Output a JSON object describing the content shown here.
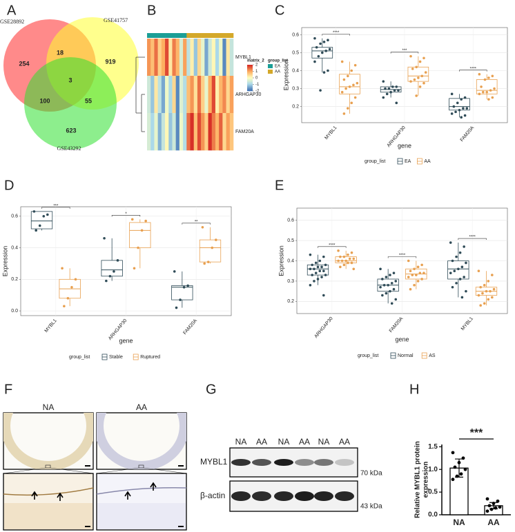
{
  "panel_labels": [
    "A",
    "B",
    "C",
    "D",
    "E",
    "F",
    "G",
    "H"
  ],
  "chart_data": [
    {
      "type": "venn",
      "sets": [
        {
          "name": "GSE28892",
          "color": "#ff2a2a"
        },
        {
          "name": "GSE41757",
          "color": "#ffff30"
        },
        {
          "name": "GSE43292",
          "color": "#30e030"
        }
      ],
      "values": [
        254,
        18,
        919,
        3,
        100,
        55,
        623
      ]
    },
    {
      "type": "heatmap",
      "rows": [
        "MYBL1",
        "ARHGAP30",
        "FAM20A"
      ],
      "column_groups": [
        "EA",
        "EA",
        "EA",
        "EA",
        "EA",
        "EA",
        "EA",
        "EA",
        "EA",
        "EA",
        "EA",
        "AA",
        "AA",
        "AA",
        "AA",
        "AA",
        "AA",
        "AA",
        "AA",
        "AA",
        "AA",
        "AA",
        "AA",
        "AA"
      ],
      "values": [
        [
          1.2,
          0.8,
          1.5,
          0.6,
          1.0,
          1.8,
          0.3,
          1.4,
          0.9,
          -0.5,
          1.1,
          -0.8,
          0.2,
          -1.2,
          0.5,
          -0.3,
          -1.5,
          -0.6,
          0.1,
          -1.0,
          -0.2,
          -1.8,
          0.3,
          -0.7
        ],
        [
          -0.6,
          -1.2,
          0.3,
          -0.8,
          -1.5,
          -0.2,
          -1.0,
          0.5,
          -1.8,
          -0.4,
          -0.9,
          0.8,
          1.2,
          0.4,
          1.5,
          0.6,
          -0.3,
          1.0,
          1.8,
          0.2,
          0.9,
          1.3,
          0.5,
          1.1
        ],
        [
          -0.5,
          -1.0,
          -0.3,
          -1.4,
          -0.7,
          0.1,
          -1.2,
          -0.6,
          -1.8,
          -0.2,
          -0.9,
          1.5,
          2.0,
          0.8,
          1.8,
          1.2,
          0.6,
          2.0,
          1.4,
          0.9,
          1.6,
          0.5,
          1.1,
          0.7
        ]
      ],
      "legend_title": "matrix_2",
      "colorbar_ticks": [
        2,
        1,
        0,
        -1,
        -2
      ],
      "colorscale": [
        "#4575b4",
        "#abd9e9",
        "#ffffbf",
        "#fdae61",
        "#d73027"
      ],
      "group_title": "group_list",
      "group_names": [
        "EA",
        "AA"
      ],
      "group_colors": [
        "#1b9e96",
        "#d4a82a"
      ]
    },
    {
      "type": "box",
      "ylabel": "Expression",
      "xlabel": "gene",
      "legend_title": "group_list",
      "categories": [
        "MYBL1",
        "ARHGAP30",
        "FAM20A"
      ],
      "ylim": [
        0.11,
        0.64
      ],
      "yticks": [
        0.2,
        0.3,
        0.4,
        0.5,
        0.6
      ],
      "annotations": [
        "****",
        "***",
        "****"
      ],
      "series": [
        {
          "name": "EA",
          "color": "#2f4b57",
          "boxes": [
            {
              "whislo": 0.39,
              "q1": 0.47,
              "median": 0.51,
              "q3": 0.53,
              "whishi": 0.58,
              "points": [
                0.58,
                0.57,
                0.56,
                0.55,
                0.53,
                0.52,
                0.51,
                0.5,
                0.48,
                0.45,
                0.4,
                0.39,
                0.29
              ]
            },
            {
              "whislo": 0.25,
              "q1": 0.28,
              "median": 0.295,
              "q3": 0.31,
              "whishi": 0.34,
              "points": [
                0.34,
                0.31,
                0.31,
                0.3,
                0.3,
                0.29,
                0.29,
                0.28,
                0.27,
                0.25,
                0.22
              ]
            },
            {
              "whislo": 0.14,
              "q1": 0.18,
              "median": 0.2,
              "q3": 0.245,
              "whishi": 0.27,
              "points": [
                0.27,
                0.25,
                0.24,
                0.22,
                0.2,
                0.19,
                0.19,
                0.18,
                0.17,
                0.16,
                0.15,
                0.14
              ]
            }
          ]
        },
        {
          "name": "AA",
          "color": "#e8a050",
          "boxes": [
            {
              "whislo": 0.16,
              "q1": 0.27,
              "median": 0.31,
              "q3": 0.38,
              "whishi": 0.45,
              "points": [
                0.45,
                0.43,
                0.4,
                0.37,
                0.35,
                0.33,
                0.32,
                0.31,
                0.3,
                0.28,
                0.25,
                0.22,
                0.19,
                0.16
              ]
            },
            {
              "whislo": 0.26,
              "q1": 0.34,
              "median": 0.37,
              "q3": 0.42,
              "whishi": 0.48,
              "points": [
                0.48,
                0.47,
                0.45,
                0.42,
                0.41,
                0.39,
                0.37,
                0.36,
                0.35,
                0.34,
                0.33,
                0.31,
                0.26
              ]
            },
            {
              "whislo": 0.24,
              "q1": 0.27,
              "median": 0.29,
              "q3": 0.35,
              "whishi": 0.38,
              "points": [
                0.38,
                0.37,
                0.36,
                0.35,
                0.31,
                0.3,
                0.29,
                0.28,
                0.28,
                0.27,
                0.25,
                0.24
              ]
            }
          ]
        }
      ]
    },
    {
      "type": "box",
      "ylabel": "Expression",
      "xlabel": "gene",
      "legend_title": "group_list",
      "categories": [
        "MYBL1",
        "ARHGAP30",
        "FAM20A"
      ],
      "ylim": [
        -0.03,
        0.66
      ],
      "yticks": [
        {
          "value": 0,
          "label": "0.0"
        },
        0.2,
        0.4,
        0.6
      ],
      "annotations": [
        "***",
        "*",
        "**"
      ],
      "series": [
        {
          "name": "Stable",
          "color": "#2f4b57",
          "boxes": [
            {
              "whislo": 0.51,
              "q1": 0.52,
              "median": 0.57,
              "q3": 0.63,
              "whishi": 0.63,
              "points": [
                0.63,
                0.61,
                0.6,
                0.54,
                0.51
              ]
            },
            {
              "whislo": 0.19,
              "q1": 0.22,
              "median": 0.26,
              "q3": 0.32,
              "whishi": 0.46,
              "points": [
                0.46,
                0.32,
                0.25,
                0.22,
                0.19
              ]
            },
            {
              "whislo": 0.02,
              "q1": 0.07,
              "median": 0.15,
              "q3": 0.16,
              "whishi": 0.25,
              "points": [
                0.25,
                0.16,
                0.15,
                0.07,
                0.02
              ]
            }
          ]
        },
        {
          "name": "Ruptured",
          "color": "#e8a050",
          "boxes": [
            {
              "whislo": 0.03,
              "q1": 0.08,
              "median": 0.14,
              "q3": 0.2,
              "whishi": 0.27,
              "points": [
                0.27,
                0.2,
                0.15,
                0.08,
                0.03
              ]
            },
            {
              "whislo": 0.27,
              "q1": 0.4,
              "median": 0.51,
              "q3": 0.56,
              "whishi": 0.58,
              "points": [
                0.58,
                0.57,
                0.51,
                0.4,
                0.27
              ]
            },
            {
              "whislo": 0.3,
              "q1": 0.31,
              "median": 0.4,
              "q3": 0.45,
              "whishi": 0.53,
              "points": [
                0.53,
                0.45,
                0.4,
                0.31,
                0.3
              ]
            }
          ]
        }
      ]
    },
    {
      "type": "box",
      "ylabel": "Expression",
      "xlabel": "gene",
      "legend_title": "group_list",
      "categories": [
        "ARHGAP30",
        "FAM20A",
        "MYBL1"
      ],
      "ylim": [
        0.14,
        0.66
      ],
      "yticks": [
        0.2,
        0.3,
        0.4,
        0.5,
        0.6
      ],
      "annotations": [
        "****",
        "****",
        "****"
      ],
      "series": [
        {
          "name": "Normal",
          "color": "#2f4b57",
          "boxes": [
            {
              "whislo": 0.28,
              "q1": 0.33,
              "median": 0.36,
              "q3": 0.38,
              "whishi": 0.43,
              "points": [
                0.43,
                0.42,
                0.4,
                0.39,
                0.38,
                0.38,
                0.37,
                0.37,
                0.36,
                0.36,
                0.35,
                0.35,
                0.34,
                0.33,
                0.33,
                0.32,
                0.31,
                0.3,
                0.28,
                0.23
              ]
            },
            {
              "whislo": 0.19,
              "q1": 0.25,
              "median": 0.28,
              "q3": 0.31,
              "whishi": 0.36,
              "points": [
                0.36,
                0.34,
                0.33,
                0.32,
                0.31,
                0.3,
                0.29,
                0.28,
                0.28,
                0.27,
                0.26,
                0.25,
                0.24,
                0.23,
                0.21,
                0.19
              ]
            },
            {
              "whislo": 0.22,
              "q1": 0.31,
              "median": 0.36,
              "q3": 0.4,
              "whishi": 0.49,
              "points": [
                0.49,
                0.47,
                0.44,
                0.42,
                0.4,
                0.39,
                0.37,
                0.36,
                0.35,
                0.34,
                0.32,
                0.31,
                0.29,
                0.27,
                0.25,
                0.22
              ]
            }
          ]
        },
        {
          "name": "AS",
          "color": "#e8a050",
          "boxes": [
            {
              "whislo": 0.36,
              "q1": 0.39,
              "median": 0.4,
              "q3": 0.42,
              "whishi": 0.45,
              "points": [
                0.45,
                0.44,
                0.43,
                0.42,
                0.42,
                0.41,
                0.41,
                0.4,
                0.4,
                0.4,
                0.39,
                0.39,
                0.38,
                0.37,
                0.36
              ]
            },
            {
              "whislo": 0.26,
              "q1": 0.31,
              "median": 0.335,
              "q3": 0.36,
              "whishi": 0.4,
              "points": [
                0.4,
                0.38,
                0.37,
                0.36,
                0.35,
                0.34,
                0.34,
                0.33,
                0.33,
                0.32,
                0.31,
                0.3,
                0.28,
                0.26
              ]
            },
            {
              "whislo": 0.18,
              "q1": 0.23,
              "median": 0.25,
              "q3": 0.27,
              "whishi": 0.35,
              "points": [
                0.35,
                0.33,
                0.3,
                0.28,
                0.27,
                0.26,
                0.25,
                0.25,
                0.24,
                0.23,
                0.22,
                0.21,
                0.19,
                0.18
              ]
            }
          ]
        }
      ]
    },
    {
      "type": "bar",
      "ylabel_lines": [
        "Relative MYBL1 protein",
        "expression"
      ],
      "categories": [
        "NA",
        "AA"
      ],
      "values": [
        1.03,
        0.2
      ],
      "errors": [
        0.2,
        0.07
      ],
      "points": [
        [
          1.37,
          1.25,
          1.15,
          1.05,
          1.0,
          0.9,
          0.85,
          0.78
        ],
        [
          0.35,
          0.3,
          0.25,
          0.2,
          0.17,
          0.15,
          0.12,
          0.08
        ]
      ],
      "annotation": "***",
      "color": "#ffffff",
      "ylim": [
        0,
        1.55
      ],
      "yticks": [
        {
          "value": 0,
          "label": "0.0"
        },
        0.5,
        {
          "value": 1,
          "label": "1.0"
        },
        1.5
      ]
    }
  ],
  "ihc": {
    "labels": [
      "NA",
      "AA"
    ]
  },
  "blot": {
    "lanes": [
      "NA",
      "AA",
      "NA",
      "AA",
      "NA",
      "AA"
    ],
    "proteins": [
      "MYBL1",
      "β-actin"
    ],
    "markers": [
      "70 kDa",
      "43 kDa"
    ]
  }
}
